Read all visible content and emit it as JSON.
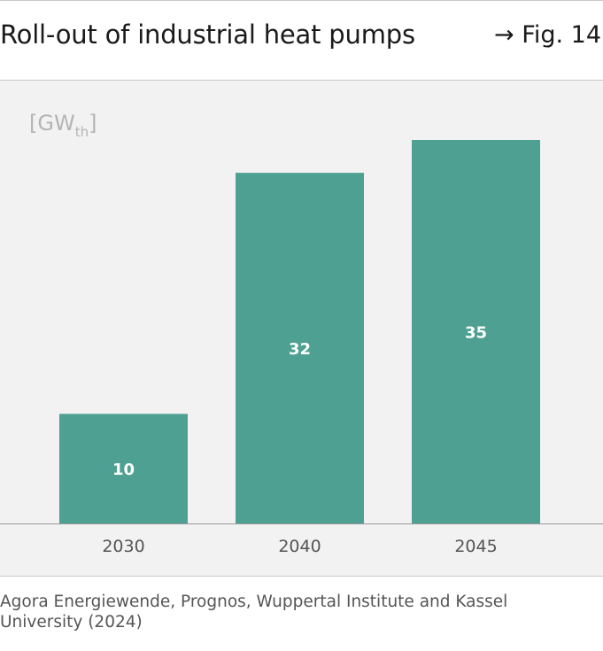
{
  "header": {
    "title": "Roll-out of industrial heat pumps",
    "fig_arrow": "→",
    "fig_label": "Fig. 14"
  },
  "chart_data": {
    "type": "bar",
    "unit_label": {
      "main": "[GW",
      "sub": "th",
      "close": "]"
    },
    "categories": [
      "2030",
      "2040",
      "2045"
    ],
    "values": [
      10,
      32,
      35
    ],
    "data_labels": [
      "10",
      "32",
      "35"
    ],
    "ylim": [
      0,
      35
    ],
    "bar_color": "#4ea192",
    "label_color": "#ffffff",
    "axis_label_color": "#555555",
    "unit_color": "#b4b4b4"
  },
  "source": "Agora Energiewende, Prognos, Wuppertal Institute and Kassel University (2024)"
}
